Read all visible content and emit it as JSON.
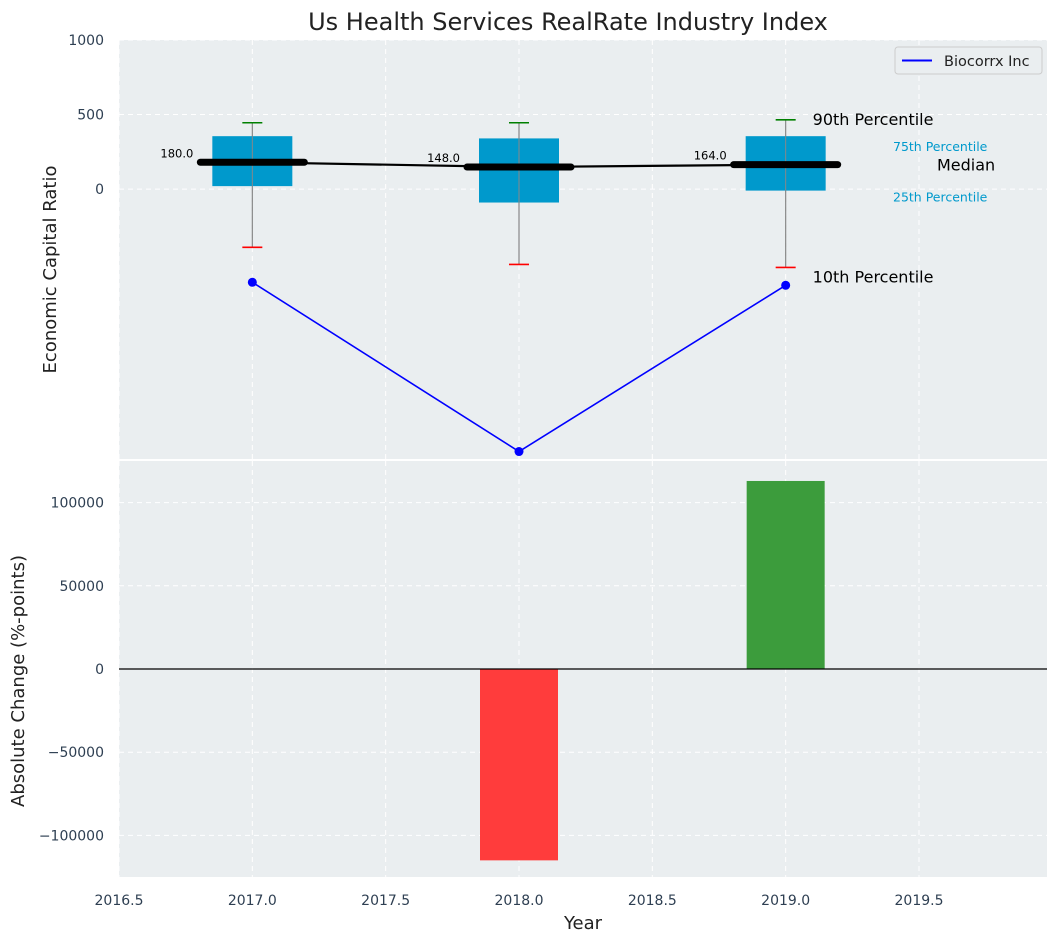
{
  "title": "Us Health Services RealRate Industry Index",
  "colors": {
    "panel_bg": "#eaeef0",
    "box": "#0099cc",
    "median": "#000000",
    "whisker": "#888888",
    "cap_top": "#008000",
    "cap_bottom": "#ff0000",
    "company_line": "#0000ff",
    "bar_negative": "#ff3c3c",
    "bar_positive": "#3c9c3c",
    "axis_text": "#2e3f52",
    "legend_border": "#cccccc"
  },
  "chart_data": [
    {
      "type": "box",
      "panel": "top",
      "title": "Us Health Services RealRate Industry Index",
      "ylabel": "Economic Capital Ratio",
      "xlim": [
        2016.5,
        2019.98
      ],
      "ylim": [
        -1810,
        1000
      ],
      "yticks": [
        0,
        500,
        1000
      ],
      "ytick_labels": [
        "0",
        "500",
        "1000"
      ],
      "grid": true,
      "legend": {
        "position": "top-right",
        "entries": [
          "Biocorrx Inc"
        ]
      },
      "years": [
        2017.0,
        2018.0,
        2019.0
      ],
      "p10": [
        -390,
        -505,
        -525
      ],
      "p25": [
        20,
        -90,
        -10
      ],
      "median": [
        180,
        148,
        164
      ],
      "p75": [
        355,
        340,
        355
      ],
      "p90": [
        445,
        445,
        465
      ],
      "median_labels": [
        "180.0",
        "148.0",
        "164.0"
      ],
      "series": [
        {
          "name": "Biocorrx Inc",
          "x": [
            2017.0,
            2018.0,
            2019.0
          ],
          "values": [
            -625,
            -1760,
            -645
          ]
        }
      ],
      "annotations": {
        "p90": "90th Percentile",
        "p75": "75th Percentile",
        "median": "Median",
        "p25": "25th Percentile",
        "p10": "10th Percentile"
      }
    },
    {
      "type": "bar",
      "panel": "bottom",
      "xlabel": "Year",
      "ylabel": "Absolute Change (%-points)",
      "xlim": [
        2016.5,
        2019.98
      ],
      "ylim": [
        -125000,
        125000
      ],
      "yticks": [
        -100000,
        -50000,
        0,
        50000,
        100000
      ],
      "ytick_labels": [
        "−100000",
        "−50000",
        "0",
        "50000",
        "100000"
      ],
      "xticks": [
        2016.5,
        2017.0,
        2017.5,
        2018.0,
        2018.5,
        2019.0,
        2019.5
      ],
      "xtick_labels": [
        "2016.5",
        "2017.0",
        "2017.5",
        "2018.0",
        "2018.5",
        "2019.0",
        "2019.5"
      ],
      "grid": true,
      "x": [
        2018.0,
        2019.0
      ],
      "values": [
        -115000,
        113000
      ]
    }
  ]
}
